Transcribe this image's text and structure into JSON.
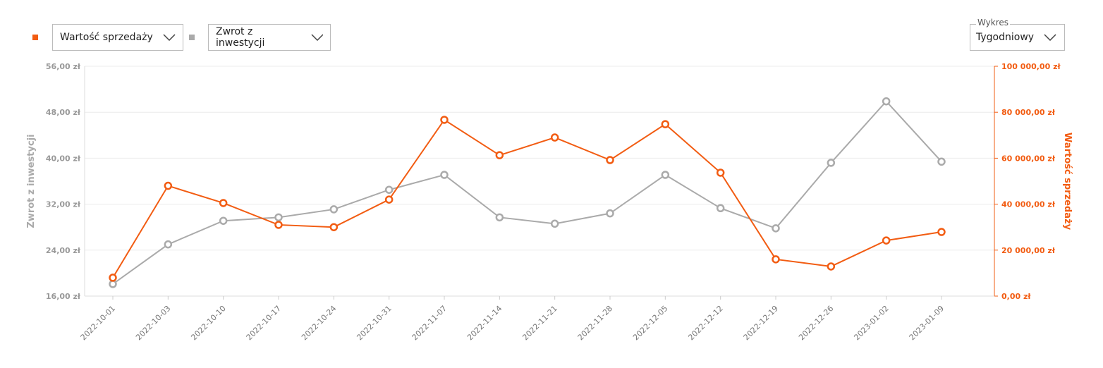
{
  "chart_data": {
    "type": "line",
    "categories": [
      "2022-10-01",
      "2022-10-03",
      "2022-10-10",
      "2022-10-17",
      "2022-10-24",
      "2022-10-31",
      "2022-11-07",
      "2022-11-14",
      "2022-11-21",
      "2022-11-28",
      "2022-12-05",
      "2022-12-12",
      "2022-12-19",
      "2022-12-26",
      "2023-01-02",
      "2023-01-09"
    ],
    "series": [
      {
        "name": "Wartość sprzedaży",
        "color": "#f25c12",
        "axis": "y2",
        "values": [
          8000,
          48000,
          40500,
          31000,
          30000,
          42000,
          76700,
          61300,
          69000,
          59200,
          74800,
          53700,
          16000,
          12900,
          24200,
          27900
        ]
      },
      {
        "name": "Zwrot z inwestycji",
        "color": "#aaaaaa",
        "values": [
          18.1,
          25.0,
          29.1,
          29.7,
          31.1,
          34.5,
          37.1,
          29.7,
          28.6,
          30.4,
          37.1,
          31.3,
          27.8,
          39.2,
          49.9,
          39.4
        ]
      }
    ],
    "ylabel": "Zwrot z inwestycji",
    "y2label": "Wartość sprzedaży",
    "ylim": [
      16,
      56
    ],
    "yticks": [
      {
        "value": 16,
        "label": "16,00 zł"
      },
      {
        "value": 24,
        "label": "24,00 zł"
      },
      {
        "value": 32,
        "label": "32,00 zł"
      },
      {
        "value": 40,
        "label": "40,00 zł"
      },
      {
        "value": 48,
        "label": "48,00 zł"
      },
      {
        "value": 56,
        "label": "56,00 zł"
      }
    ],
    "y2lim": [
      0,
      100000
    ],
    "y2ticks": [
      {
        "value": 0,
        "label": "0,00 zł"
      },
      {
        "value": 20000,
        "label": "20 000,00 zł"
      },
      {
        "value": 40000,
        "label": "40 000,00 zł"
      },
      {
        "value": 60000,
        "label": "60 000,00 zł"
      },
      {
        "value": 80000,
        "label": "80 000,00 zł"
      },
      {
        "value": 100000,
        "label": "100 000,00 zł"
      }
    ],
    "grid": true
  },
  "controls": {
    "chart_label": "Wykres",
    "period": "Tygodniowy"
  }
}
